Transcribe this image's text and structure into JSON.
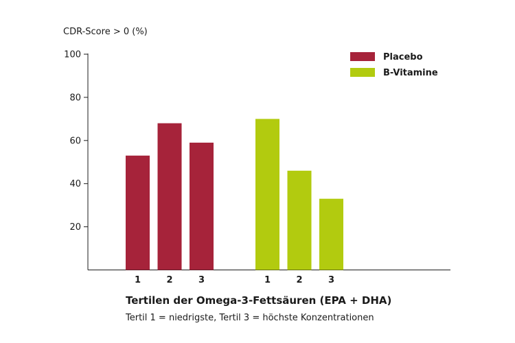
{
  "chart_data": {
    "type": "bar",
    "ylabel": "CDR-Score > 0 (%)",
    "ylim": [
      0,
      100
    ],
    "yticks": [
      20,
      40,
      60,
      80,
      100
    ],
    "groups": [
      {
        "name": "Placebo",
        "color": "#a6233a",
        "categories": [
          "1",
          "2",
          "3"
        ],
        "values": [
          53,
          68,
          59
        ]
      },
      {
        "name": "B-Vitamine",
        "color": "#b2cb0f",
        "categories": [
          "1",
          "2",
          "3"
        ],
        "values": [
          70,
          46,
          33
        ]
      }
    ],
    "legend_position": "top-right",
    "xlabel": "Tertilen der Omega-3-Fettsäuren (EPA + DHA)",
    "xsublabel": "Tertil 1 = niedrigste, Tertil 3 = höchste Konzentrationen"
  }
}
